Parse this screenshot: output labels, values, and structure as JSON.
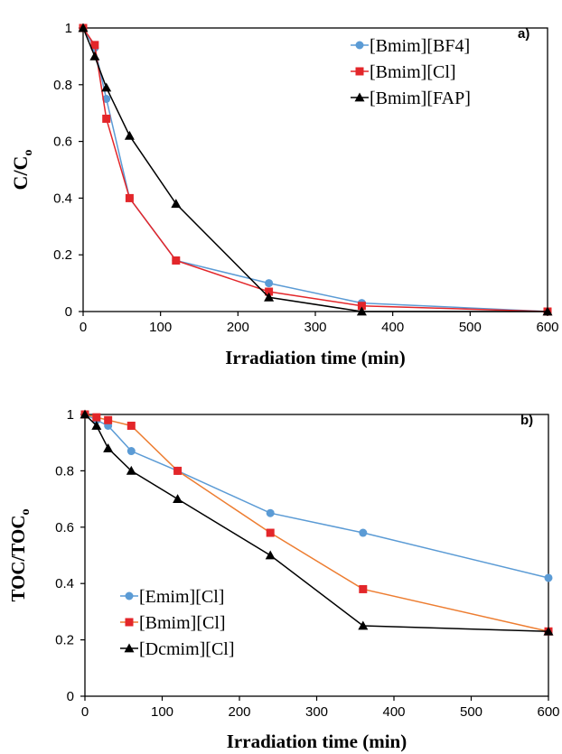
{
  "chart_data": [
    {
      "type": "line",
      "panel_label": "a)",
      "xlabel": "Irradiation time (min)",
      "ylabel": "C/C",
      "ylabel_sub": "o",
      "xlim": [
        0,
        600
      ],
      "ylim": [
        0,
        1
      ],
      "x_ticks": [
        0,
        100,
        200,
        300,
        400,
        500,
        600
      ],
      "x_tick_labels": [
        "0",
        "100",
        "200",
        "300",
        "400",
        "500",
        "600"
      ],
      "y_ticks": [
        0,
        0.2,
        0.4,
        0.6,
        0.8,
        1
      ],
      "y_tick_labels": [
        "0",
        "0.2",
        "0.4",
        "0.6",
        "0.8",
        "1"
      ],
      "grid": false,
      "legend_position": "top-right",
      "series": [
        {
          "name": "[Bmim][BF4]",
          "color": "#5b9bd5",
          "marker": "circle",
          "x": [
            0,
            15,
            30,
            60,
            120,
            240,
            360,
            600
          ],
          "y": [
            1.0,
            0.93,
            0.75,
            0.4,
            0.18,
            0.1,
            0.03,
            0.0
          ]
        },
        {
          "name": "[Bmim][Cl]",
          "color": "#e3262a",
          "marker": "square",
          "x": [
            0,
            15,
            30,
            60,
            120,
            240,
            360,
            600
          ],
          "y": [
            1.0,
            0.94,
            0.68,
            0.4,
            0.18,
            0.07,
            0.02,
            0.0
          ]
        },
        {
          "name": "[Bmim][FAP]",
          "color": "#000000",
          "marker": "triangle",
          "x": [
            0,
            15,
            30,
            60,
            120,
            240,
            360,
            600
          ],
          "y": [
            1.0,
            0.9,
            0.79,
            0.62,
            0.38,
            0.05,
            0.0,
            0.0
          ]
        }
      ]
    },
    {
      "type": "line",
      "panel_label": "b)",
      "xlabel": "Irradiation time (min)",
      "ylabel": "TOC/TOC",
      "ylabel_sub": "o",
      "xlim": [
        0,
        600
      ],
      "ylim": [
        0,
        1
      ],
      "x_ticks": [
        0,
        100,
        200,
        300,
        400,
        500,
        600
      ],
      "x_tick_labels": [
        "0",
        "100",
        "200",
        "300",
        "400",
        "500",
        "600"
      ],
      "y_ticks": [
        0,
        0.2,
        0.4,
        0.6,
        0.8,
        1
      ],
      "y_tick_labels": [
        "0",
        "0.2",
        "0.4",
        "0.6",
        "0.8",
        "1"
      ],
      "grid": false,
      "legend_position": "bottom-left",
      "series": [
        {
          "name": "[Emim][Cl]",
          "color": "#5b9bd5",
          "line_color": "#5b9bd5",
          "marker": "circle",
          "x": [
            0,
            15,
            30,
            60,
            120,
            240,
            360,
            600
          ],
          "y": [
            1.0,
            0.98,
            0.96,
            0.87,
            0.8,
            0.65,
            0.58,
            0.42
          ]
        },
        {
          "name": "[Bmim][Cl]",
          "color": "#e3262a",
          "line_color": "#ed7d31",
          "marker": "square",
          "x": [
            0,
            15,
            30,
            60,
            120,
            240,
            360,
            600
          ],
          "y": [
            1.0,
            0.99,
            0.98,
            0.96,
            0.8,
            0.58,
            0.38,
            0.23
          ]
        },
        {
          "name": "[Dcmim][Cl]",
          "color": "#000000",
          "line_color": "#000000",
          "marker": "triangle",
          "x": [
            0,
            15,
            30,
            60,
            120,
            240,
            360,
            600
          ],
          "y": [
            1.0,
            0.96,
            0.88,
            0.8,
            0.7,
            0.5,
            0.25,
            0.23
          ]
        }
      ]
    }
  ]
}
